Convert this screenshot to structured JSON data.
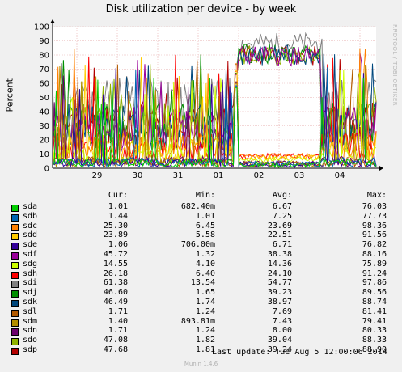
{
  "chart_data": {
    "type": "line",
    "title": "Disk utilization per device - by week",
    "ylabel": "Percent",
    "ylim": [
      0,
      100
    ],
    "y_ticks": [
      "0",
      "10",
      "20",
      "30",
      "40",
      "50",
      "60",
      "70",
      "80",
      "90",
      "100"
    ],
    "x_ticks": [
      "29",
      "30",
      "31",
      "01",
      "02",
      "03",
      "04"
    ],
    "grid": true,
    "side_label": "RRDTOOL / TOBI OETIKER",
    "columns": [
      "Cur:",
      "Min:",
      "Avg:",
      "Max:"
    ],
    "series": [
      {
        "name": "sda",
        "color": "#00cc00",
        "cur": "1.01",
        "min": "682.40m",
        "avg": "6.67",
        "max": "76.03"
      },
      {
        "name": "sdb",
        "color": "#0066b3",
        "cur": "1.44",
        "min": "1.01",
        "avg": "7.25",
        "max": "77.73"
      },
      {
        "name": "sdc",
        "color": "#ff8000",
        "cur": "25.30",
        "min": "6.45",
        "avg": "23.69",
        "max": "98.36"
      },
      {
        "name": "sdd",
        "color": "#ffcc00",
        "cur": "23.89",
        "min": "5.58",
        "avg": "22.51",
        "max": "91.56"
      },
      {
        "name": "sde",
        "color": "#330099",
        "cur": "1.06",
        "min": "706.00m",
        "avg": "6.71",
        "max": "76.82"
      },
      {
        "name": "sdf",
        "color": "#990099",
        "cur": "45.72",
        "min": "1.32",
        "avg": "38.38",
        "max": "88.16"
      },
      {
        "name": "sdg",
        "color": "#ccff00",
        "cur": "14.55",
        "min": "4.10",
        "avg": "14.36",
        "max": "75.89"
      },
      {
        "name": "sdh",
        "color": "#ff0000",
        "cur": "26.18",
        "min": "6.40",
        "avg": "24.10",
        "max": "91.24"
      },
      {
        "name": "sdi",
        "color": "#808080",
        "cur": "61.38",
        "min": "13.54",
        "avg": "54.77",
        "max": "97.86"
      },
      {
        "name": "sdj",
        "color": "#008f00",
        "cur": "46.60",
        "min": "1.65",
        "avg": "39.23",
        "max": "89.56"
      },
      {
        "name": "sdk",
        "color": "#00487d",
        "cur": "46.49",
        "min": "1.74",
        "avg": "38.97",
        "max": "88.74"
      },
      {
        "name": "sdl",
        "color": "#b35a00",
        "cur": "1.71",
        "min": "1.24",
        "avg": "7.69",
        "max": "81.41"
      },
      {
        "name": "sdm",
        "color": "#b38f00",
        "cur": "1.40",
        "min": "893.81m",
        "avg": "7.43",
        "max": "79.41"
      },
      {
        "name": "sdn",
        "color": "#6b006b",
        "cur": "1.71",
        "min": "1.24",
        "avg": "8.00",
        "max": "80.33"
      },
      {
        "name": "sdo",
        "color": "#8fb300",
        "cur": "47.08",
        "min": "1.82",
        "avg": "39.04",
        "max": "88.33"
      },
      {
        "name": "sdp",
        "color": "#b30000",
        "cur": "47.68",
        "min": "1.81",
        "avg": "39.24",
        "max": "88.90"
      }
    ]
  },
  "footer": {
    "last_update": "Last update:  Tue Aug  5 12:00:06 2014",
    "version": "Munin 1.4.6"
  }
}
